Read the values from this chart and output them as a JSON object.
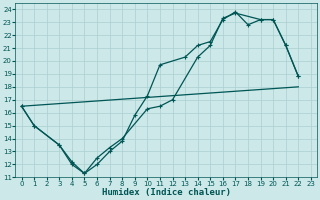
{
  "xlabel": "Humidex (Indice chaleur)",
  "bg_color": "#cce8e8",
  "grid_color": "#aacfcf",
  "line_color": "#005555",
  "xlim": [
    -0.5,
    23.5
  ],
  "ylim": [
    11,
    24.5
  ],
  "xticks": [
    0,
    1,
    2,
    3,
    4,
    5,
    6,
    7,
    8,
    9,
    10,
    11,
    12,
    13,
    14,
    15,
    16,
    17,
    18,
    19,
    20,
    21,
    22,
    23
  ],
  "yticks": [
    11,
    12,
    13,
    14,
    15,
    16,
    17,
    18,
    19,
    20,
    21,
    22,
    23,
    24
  ],
  "line1_x": [
    0,
    1,
    3,
    4,
    5,
    6,
    7,
    8,
    10,
    11,
    12,
    14,
    15,
    16,
    17,
    19,
    20,
    21,
    22
  ],
  "line1_y": [
    16.5,
    15.0,
    13.5,
    12.2,
    11.3,
    12.5,
    13.3,
    14.0,
    16.3,
    16.5,
    17.0,
    20.3,
    21.2,
    23.3,
    23.7,
    23.2,
    23.2,
    21.2,
    18.8
  ],
  "line2_x": [
    0,
    1,
    3,
    4,
    5,
    6,
    7,
    8,
    9,
    10,
    11,
    13,
    14,
    15,
    16,
    17,
    18,
    19,
    20,
    21,
    22
  ],
  "line2_y": [
    16.5,
    15.0,
    13.5,
    12.0,
    11.3,
    12.0,
    13.0,
    13.8,
    15.8,
    17.3,
    19.7,
    20.3,
    21.2,
    21.5,
    23.2,
    23.8,
    22.8,
    23.2,
    23.2,
    21.2,
    18.8
  ],
  "line3_x": [
    0,
    22
  ],
  "line3_y": [
    16.5,
    18.0
  ],
  "marker": "+",
  "markersize": 3.5,
  "markeredgewidth": 0.8,
  "linewidth": 0.9,
  "tick_fontsize": 5.0,
  "xlabel_fontsize": 6.5,
  "fig_width": 3.2,
  "fig_height": 2.0,
  "dpi": 100
}
